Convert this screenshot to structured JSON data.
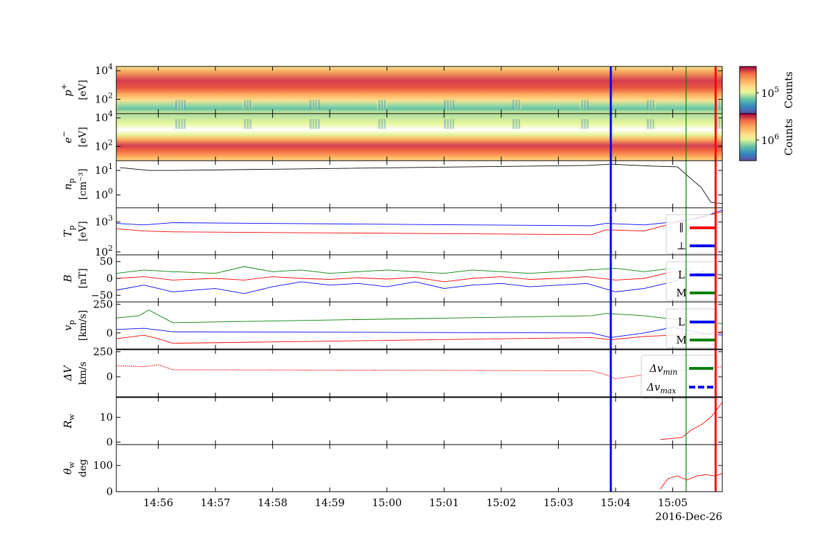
{
  "chart_data": {
    "type": "line",
    "date_label": "2016-Dec-26",
    "x_ticks": [
      "14:56",
      "14:57",
      "14:58",
      "14:59",
      "15:00",
      "15:01",
      "15:02",
      "15:03",
      "15:04",
      "15:05"
    ],
    "x_range": [
      "14:55:16",
      "15:05:52"
    ],
    "markers": [
      {
        "time": "15:03:55",
        "color": "#0000ff"
      },
      {
        "time": "15:05:14",
        "color": "#008000"
      },
      {
        "time": "15:05:45",
        "color": "#ff0000"
      }
    ],
    "panels": [
      {
        "id": "proton-spectrogram",
        "type": "heatmap",
        "ylabel": [
          "p",
          "+",
          "[eV]"
        ],
        "yscale": "log",
        "ylim": [
          10,
          20000
        ],
        "yticks": [
          {
            "base": "10",
            "exp": "2",
            "v": 100
          },
          {
            "base": "10",
            "exp": "4",
            "v": 10000
          }
        ],
        "colorbar": {
          "label": "Counts",
          "ticks": [
            {
              "base": "10",
              "exp": "5"
            }
          ]
        }
      },
      {
        "id": "electron-spectrogram",
        "type": "heatmap",
        "ylabel": [
          "e",
          "−",
          "[eV]"
        ],
        "yscale": "log",
        "ylim": [
          10,
          20000
        ],
        "yticks": [
          {
            "base": "10",
            "exp": "2",
            "v": 100
          },
          {
            "base": "10",
            "exp": "4",
            "v": 10000
          }
        ],
        "colorbar": {
          "label": "Counts",
          "ticks": [
            {
              "base": "10",
              "exp": "6"
            }
          ]
        }
      },
      {
        "id": "density",
        "ylabel": [
          "n",
          "p",
          "[cm⁻³]"
        ],
        "yscale": "log",
        "ylim": [
          0.3,
          25
        ],
        "yticks": [
          {
            "base": "10",
            "exp": "0",
            "v": 1
          },
          {
            "base": "10",
            "exp": "1",
            "v": 10
          }
        ],
        "series": [
          {
            "color": "#000000",
            "points": [
              [
                "14:55:20",
                13
              ],
              [
                "14:55:50",
                10
              ],
              [
                "14:56:15",
                10
              ],
              [
                "15:03:30",
                16
              ],
              [
                "15:03:55",
                18
              ],
              [
                "15:04:40",
                15
              ],
              [
                "15:05:05",
                14
              ],
              [
                "15:05:18",
                5
              ],
              [
                "15:05:30",
                2
              ],
              [
                "15:05:40",
                0.5
              ],
              [
                "15:05:52",
                0.45
              ]
            ]
          }
        ]
      },
      {
        "id": "temperature",
        "ylabel": [
          "T",
          "p",
          "[eV]"
        ],
        "yscale": "log",
        "ylim": [
          80,
          3000
        ],
        "yticks": [
          {
            "base": "10",
            "exp": "2",
            "v": 100
          },
          {
            "base": "10",
            "exp": "3",
            "v": 1000
          }
        ],
        "legend": [
          "∥",
          "⊥"
        ],
        "series": [
          {
            "name": "∥",
            "color": "#ff0000",
            "points": [
              [
                "14:55:16",
                600
              ],
              [
                "14:55:45",
                500
              ],
              [
                "14:56:15",
                470
              ],
              [
                "15:03:35",
                380
              ],
              [
                "15:03:50",
                550
              ],
              [
                "15:04:30",
                500
              ],
              [
                "15:05:00",
                900
              ],
              [
                "15:05:30",
                1500
              ],
              [
                "15:05:52",
                2200
              ]
            ]
          },
          {
            "name": "⊥",
            "color": "#0000ff",
            "points": [
              [
                "14:55:16",
                900
              ],
              [
                "14:55:45",
                800
              ],
              [
                "14:56:15",
                950
              ],
              [
                "15:03:35",
                750
              ],
              [
                "15:03:50",
                900
              ],
              [
                "15:04:30",
                800
              ],
              [
                "15:05:00",
                1000
              ],
              [
                "15:05:30",
                1400
              ],
              [
                "15:05:52",
                2500
              ]
            ]
          }
        ]
      },
      {
        "id": "magnetic-field",
        "ylabel": [
          "B",
          "",
          "[nT]"
        ],
        "yscale": "linear",
        "ylim": [
          -70,
          70
        ],
        "yticks": [
          {
            "label": "−50",
            "v": -50
          },
          {
            "label": "0",
            "v": 0
          },
          {
            "label": "50",
            "v": 50
          }
        ],
        "legend": [
          "L",
          "M"
        ],
        "series": [
          {
            "name": "L",
            "color": "#0000ff",
            "points": [
              [
                "14:55:16",
                -35
              ],
              [
                "14:55:45",
                -20
              ],
              [
                "14:56:15",
                -40
              ],
              [
                "14:57:00",
                -30
              ],
              [
                "14:57:30",
                -45
              ],
              [
                "14:58:00",
                -25
              ],
              [
                "14:58:30",
                -10
              ],
              [
                "14:59:00",
                -20
              ],
              [
                "14:59:30",
                -15
              ],
              [
                "15:00:00",
                -25
              ],
              [
                "15:00:30",
                -10
              ],
              [
                "15:01:00",
                -30
              ],
              [
                "15:01:30",
                -20
              ],
              [
                "15:02:00",
                -15
              ],
              [
                "15:02:30",
                -25
              ],
              [
                "15:03:00",
                -20
              ],
              [
                "15:03:30",
                -15
              ],
              [
                "15:04:00",
                -40
              ],
              [
                "15:04:30",
                -30
              ],
              [
                "15:05:00",
                -10
              ],
              [
                "15:05:30",
                20
              ],
              [
                "15:05:52",
                10
              ]
            ]
          },
          {
            "name": "M",
            "color": "#008000",
            "points": [
              [
                "14:55:16",
                15
              ],
              [
                "14:55:45",
                25
              ],
              [
                "14:56:15",
                20
              ],
              [
                "14:57:00",
                15
              ],
              [
                "14:57:30",
                35
              ],
              [
                "14:58:00",
                20
              ],
              [
                "14:58:30",
                25
              ],
              [
                "14:59:00",
                15
              ],
              [
                "14:59:30",
                20
              ],
              [
                "15:00:00",
                25
              ],
              [
                "15:00:30",
                20
              ],
              [
                "15:01:00",
                15
              ],
              [
                "15:01:30",
                25
              ],
              [
                "15:02:00",
                20
              ],
              [
                "15:02:30",
                15
              ],
              [
                "15:03:00",
                20
              ],
              [
                "15:03:30",
                25
              ],
              [
                "15:04:00",
                30
              ],
              [
                "15:04:30",
                20
              ],
              [
                "15:05:00",
                30
              ],
              [
                "15:05:30",
                15
              ],
              [
                "15:05:52",
                10
              ]
            ]
          },
          {
            "name": "",
            "color": "#ff0000",
            "points": [
              [
                "14:55:16",
                0
              ],
              [
                "14:55:45",
                5
              ],
              [
                "14:56:15",
                -5
              ],
              [
                "14:57:00",
                0
              ],
              [
                "14:57:30",
                -5
              ],
              [
                "14:58:00",
                5
              ],
              [
                "14:58:30",
                0
              ],
              [
                "14:59:00",
                -3
              ],
              [
                "14:59:30",
                2
              ],
              [
                "15:00:00",
                -2
              ],
              [
                "15:00:30",
                3
              ],
              [
                "15:01:00",
                -10
              ],
              [
                "15:01:30",
                0
              ],
              [
                "15:02:00",
                5
              ],
              [
                "15:02:30",
                -3
              ],
              [
                "15:03:00",
                0
              ],
              [
                "15:03:30",
                5
              ],
              [
                "15:04:00",
                -5
              ],
              [
                "15:04:30",
                0
              ],
              [
                "15:05:00",
                20
              ],
              [
                "15:05:30",
                5
              ],
              [
                "15:05:52",
                0
              ]
            ]
          }
        ]
      },
      {
        "id": "velocity",
        "ylabel": [
          "v",
          "p",
          "[km/s]"
        ],
        "yscale": "linear",
        "ylim": [
          -140,
          270
        ],
        "yticks": [
          {
            "label": "0",
            "v": 0
          },
          {
            "label": "250",
            "v": 250
          }
        ],
        "legend": [
          "L",
          "M"
        ],
        "series": [
          {
            "name": "M",
            "color": "#008000",
            "points": [
              [
                "14:55:16",
                130
              ],
              [
                "14:55:40",
                150
              ],
              [
                "14:55:50",
                200
              ],
              [
                "14:56:15",
                90
              ],
              [
                "15:03:35",
                150
              ],
              [
                "15:03:50",
                170
              ],
              [
                "15:04:30",
                150
              ],
              [
                "15:05:00",
                120
              ],
              [
                "15:05:30",
                100
              ],
              [
                "15:05:52",
                80
              ]
            ]
          },
          {
            "name": "L",
            "color": "#0000ff",
            "points": [
              [
                "14:55:16",
                30
              ],
              [
                "14:55:45",
                40
              ],
              [
                "14:56:15",
                10
              ],
              [
                "15:03:35",
                0
              ],
              [
                "15:03:55",
                -40
              ],
              [
                "15:04:30",
                0
              ],
              [
                "15:05:00",
                50
              ],
              [
                "15:05:30",
                0
              ],
              [
                "15:05:52",
                -20
              ]
            ]
          },
          {
            "name": "",
            "color": "#ff0000",
            "points": [
              [
                "14:55:16",
                -50
              ],
              [
                "14:55:45",
                -20
              ],
              [
                "14:56:00",
                -50
              ],
              [
                "14:56:15",
                -90
              ],
              [
                "15:03:35",
                -40
              ],
              [
                "15:03:55",
                -60
              ],
              [
                "15:04:30",
                -30
              ],
              [
                "15:05:00",
                -20
              ],
              [
                "15:05:30",
                -10
              ],
              [
                "15:05:52",
                10
              ]
            ]
          }
        ]
      },
      {
        "id": "delta-v",
        "ylabel": [
          "ΔV",
          "",
          "km/s"
        ],
        "yscale": "linear",
        "ylim": [
          -200,
          270
        ],
        "yticks": [
          {
            "label": "0",
            "v": 0
          },
          {
            "label": "250",
            "v": 250
          }
        ],
        "legend": [
          "Δv",
          "min",
          "Δv",
          "max"
        ],
        "series": [
          {
            "name": "",
            "color": "#ff0000",
            "dashed": true,
            "points": [
              [
                "14:55:16",
                110
              ],
              [
                "14:55:45",
                100
              ],
              [
                "14:56:00",
                120
              ],
              [
                "14:56:15",
                70
              ],
              [
                "15:03:35",
                60
              ],
              [
                "15:03:50",
                20
              ],
              [
                "15:04:00",
                -20
              ],
              [
                "15:04:30",
                20
              ],
              [
                "15:05:00",
                60
              ],
              [
                "15:05:30",
                80
              ],
              [
                "15:05:52",
                100
              ]
            ]
          }
        ]
      },
      {
        "id": "walen-ratio",
        "ylabel": [
          "R",
          "w",
          ""
        ],
        "yscale": "linear",
        "ylim": [
          -1,
          18
        ],
        "yticks": [
          {
            "label": "0",
            "v": 0
          },
          {
            "label": "10",
            "v": 10
          }
        ],
        "series": [
          {
            "name": "",
            "color": "#ff0000",
            "points": [
              [
                "15:04:47",
                1
              ],
              [
                "15:05:00",
                1.5
              ],
              [
                "15:05:10",
                2
              ],
              [
                "15:05:20",
                5
              ],
              [
                "15:05:30",
                7
              ],
              [
                "15:05:40",
                10
              ],
              [
                "15:05:52",
                16
              ]
            ]
          }
        ]
      },
      {
        "id": "walen-angle",
        "ylabel": [
          "θ",
          "w",
          "deg"
        ],
        "yscale": "linear",
        "ylim": [
          0,
          180
        ],
        "yticks": [
          {
            "label": "0",
            "v": 0
          },
          {
            "label": "100",
            "v": 100
          }
        ],
        "series": [
          {
            "name": "",
            "color": "#ff0000",
            "points": [
              [
                "15:04:47",
                10
              ],
              [
                "15:04:55",
                50
              ],
              [
                "15:05:05",
                60
              ],
              [
                "15:05:15",
                45
              ],
              [
                "15:05:25",
                60
              ],
              [
                "15:05:35",
                65
              ],
              [
                "15:05:45",
                60
              ],
              [
                "15:05:52",
                70
              ]
            ]
          }
        ]
      }
    ]
  }
}
